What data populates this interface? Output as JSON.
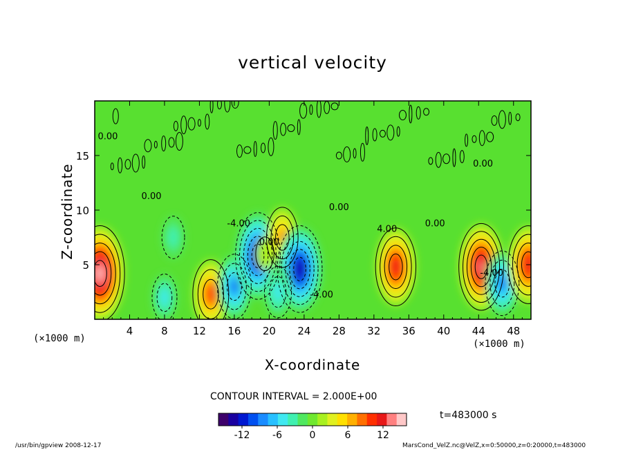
{
  "chart_data": {
    "type": "heatmap",
    "title": "vertical velocity",
    "xlabel": "X-coordinate",
    "ylabel": "Z-coordinate",
    "x_unit": "(×1000 m)",
    "y_unit": "(×1000 m)",
    "xlim": [
      0,
      50
    ],
    "ylim": [
      0,
      20
    ],
    "x_ticks": [
      4,
      8,
      12,
      16,
      20,
      24,
      28,
      32,
      36,
      40,
      44,
      48
    ],
    "y_ticks": [
      5,
      10,
      15
    ],
    "contour_interval_label": "CONTOUR INTERVAL = 2.000E+00",
    "contour_labels": [
      "0.00",
      "0.00",
      "-4.00",
      "4.00",
      "-4.00",
      "0.00",
      "0.00",
      "0.00",
      "-4.00",
      "0.00"
    ],
    "colorbar": {
      "ticks": [
        -12,
        -6,
        0,
        6,
        12
      ],
      "range": [
        -16,
        16
      ]
    },
    "time_label": "t=483000 s",
    "features": [
      {
        "x": 0.6,
        "z": 4.2,
        "value": 16
      },
      {
        "x": 13.3,
        "z": 2.3,
        "value": 10
      },
      {
        "x": 16.0,
        "z": 3.0,
        "value": -9
      },
      {
        "x": 18.7,
        "z": 5.8,
        "value": -14
      },
      {
        "x": 19.5,
        "z": 6.0,
        "value": 2
      },
      {
        "x": 21.5,
        "z": 7.5,
        "value": 8
      },
      {
        "x": 23.5,
        "z": 4.6,
        "value": -14
      },
      {
        "x": 21.0,
        "z": 2.5,
        "value": -6
      },
      {
        "x": 34.5,
        "z": 4.8,
        "value": 12
      },
      {
        "x": 44.3,
        "z": 4.8,
        "value": 14
      },
      {
        "x": 46.7,
        "z": 3.3,
        "value": -9
      },
      {
        "x": 49.7,
        "z": 5.0,
        "value": 12
      },
      {
        "x": 8.0,
        "z": 2.0,
        "value": -5
      },
      {
        "x": 9.0,
        "z": 7.5,
        "value": -4
      }
    ]
  },
  "footer": {
    "left": "/usr/bin/gpview  2008-12-17",
    "right": "MarsCond_VelZ.nc@VelZ,x=0:50000,z=0:20000,t=483000"
  }
}
